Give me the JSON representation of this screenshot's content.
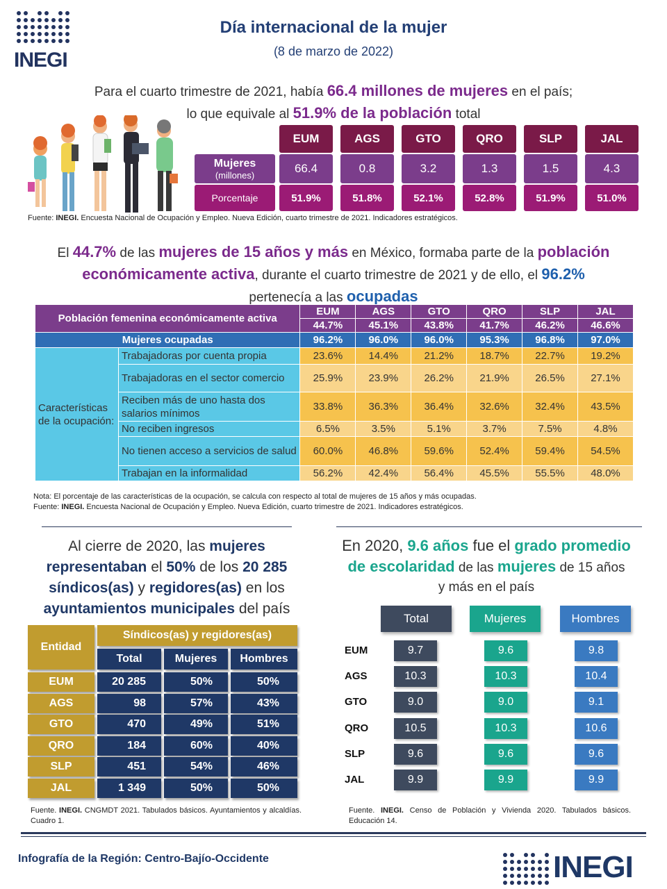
{
  "brand": {
    "name": "INEGI"
  },
  "header": {
    "title": "Día internacional de la mujer",
    "subtitle": "(8 de marzo de 2022)"
  },
  "intro": {
    "p1a": "Para el cuarto trimestre de 2021, había ",
    "p1b": "66.4 millones de mujeres",
    "p1c": " en el país;",
    "p2a": "lo que equivale al ",
    "p2b": "51.9% de la población",
    "p2c": " total"
  },
  "pop_table": {
    "entities": [
      "EUM",
      "AGS",
      "GTO",
      "QRO",
      "SLP",
      "JAL"
    ],
    "row1_label": "Mujeres",
    "row1_sub": "(millones)",
    "millions": [
      "66.4",
      "0.8",
      "3.2",
      "1.3",
      "1.5",
      "4.3"
    ],
    "row2_label": "Porcentaje",
    "percent": [
      "51.9%",
      "51.8%",
      "52.1%",
      "52.8%",
      "51.9%",
      "51.0%"
    ]
  },
  "source1": {
    "pre": "Fuente: ",
    "bold": "INEGI.",
    "rest": " Encuesta Nacional de Ocupación y Empleo. Nueva Edición, cuarto trimestre de 2021. Indicadores estratégicos."
  },
  "para2": {
    "a": "El ",
    "b": "44.7%",
    "c": " de las ",
    "d": "mujeres de 15 años y más",
    "e": " en México, formaba parte de la ",
    "f": "población",
    "g": "económicamente activa",
    "h": ", durante el cuarto trimestre de 2021 y de ello, el ",
    "i": "96.2%",
    "j": "pertenecía a las ",
    "k": "ocupadas"
  },
  "eap_table": {
    "title": "Población femenina económicamente activa",
    "entities": [
      "EUM",
      "AGS",
      "GTO",
      "QRO",
      "SLP",
      "JAL"
    ],
    "pea": [
      "44.7%",
      "45.1%",
      "43.8%",
      "41.7%",
      "46.2%",
      "46.6%"
    ],
    "ocup_label": "Mujeres ocupadas",
    "ocup": [
      "96.2%",
      "96.0%",
      "96.0%",
      "95.3%",
      "96.8%",
      "97.0%"
    ],
    "char_label": "Características de la ocupación:",
    "rows": [
      {
        "label": "Trabajadoras por cuenta propia",
        "v": [
          "23.6%",
          "14.4%",
          "21.2%",
          "18.7%",
          "22.7%",
          "19.2%"
        ]
      },
      {
        "label": "Trabajadoras en el sector comercio",
        "v": [
          "25.9%",
          "23.9%",
          "26.2%",
          "21.9%",
          "26.5%",
          "27.1%"
        ]
      },
      {
        "label": "Reciben más de uno hasta dos salarios mínimos",
        "v": [
          "33.8%",
          "36.3%",
          "36.4%",
          "32.6%",
          "32.4%",
          "43.5%"
        ]
      },
      {
        "label": "No reciben ingresos",
        "v": [
          "6.5%",
          "3.5%",
          "5.1%",
          "3.7%",
          "7.5%",
          "4.8%"
        ]
      },
      {
        "label": "No tienen acceso a servicios de salud",
        "v": [
          "60.0%",
          "46.8%",
          "59.6%",
          "52.4%",
          "59.4%",
          "54.5%"
        ]
      },
      {
        "label": "Trabajan en la informalidad",
        "v": [
          "56.2%",
          "42.4%",
          "56.4%",
          "45.5%",
          "55.5%",
          "48.0%"
        ]
      }
    ]
  },
  "nota": {
    "line1": "Nota: El porcentaje de las características de la ocupación, se calcula con respecto al total de mujeres de 15 años y más ocupadas.",
    "pre": "Fuente: ",
    "bold": "INEGI.",
    "rest": " Encuesta Nacional de Ocupación y Empleo. Nueva Edición, cuarto trimestre de 2021. Indicadores estratégicos."
  },
  "left_para": {
    "a": "Al cierre de 2020, las ",
    "b": "mujeres",
    "c": "representaban",
    "d": " el ",
    "e": "50%",
    "f": " de los ",
    "g": "20 285",
    "h": "síndicos(as)",
    "i": " y ",
    "j": "regidores(as)",
    "k": " en los",
    "l": "ayuntamientos municipales",
    "m": " del país"
  },
  "muni_table": {
    "entity_header": "Entidad",
    "group_header": "Síndicos(as) y regidores(as)",
    "cols": [
      "Total",
      "Mujeres",
      "Hombres"
    ],
    "rows": [
      {
        "e": "EUM",
        "t": "20 285",
        "m": "50%",
        "h": "50%"
      },
      {
        "e": "AGS",
        "t": "98",
        "m": "57%",
        "h": "43%"
      },
      {
        "e": "GTO",
        "t": "470",
        "m": "49%",
        "h": "51%"
      },
      {
        "e": "QRO",
        "t": "184",
        "m": "60%",
        "h": "40%"
      },
      {
        "e": "SLP",
        "t": "451",
        "m": "54%",
        "h": "46%"
      },
      {
        "e": "JAL",
        "t": "1 349",
        "m": "50%",
        "h": "50%"
      }
    ]
  },
  "source3": {
    "pre": "Fuente. ",
    "bold": "INEGI.",
    "rest": " CNGMDT 2021. Tabulados básicos. Ayuntamientos y alcaldías. Cuadro 1."
  },
  "right_para": {
    "a": "En 2020, ",
    "b": "9.6 años",
    "c": " fue el ",
    "d": "grado promedio",
    "e": "de escolaridad",
    "f": " de las ",
    "g": "mujeres",
    "h": " de 15 años",
    "i": "y más en el país"
  },
  "edu_table": {
    "cols": [
      "Total",
      "Mujeres",
      "Hombres"
    ],
    "colors": {
      "total": "#3e4a5e",
      "mujeres": "#1aa58d",
      "hombres": "#3a7ac1"
    },
    "rows": [
      {
        "e": "EUM",
        "t": "9.7",
        "m": "9.6",
        "h": "9.8"
      },
      {
        "e": "AGS",
        "t": "10.3",
        "m": "10.3",
        "h": "10.4"
      },
      {
        "e": "GTO",
        "t": "9.0",
        "m": "9.0",
        "h": "9.1"
      },
      {
        "e": "QRO",
        "t": "10.5",
        "m": "10.3",
        "h": "10.6"
      },
      {
        "e": "SLP",
        "t": "9.6",
        "m": "9.6",
        "h": "9.6"
      },
      {
        "e": "JAL",
        "t": "9.9",
        "m": "9.9",
        "h": "9.9"
      }
    ]
  },
  "source4": {
    "pre": "Fuente. ",
    "bold": "INEGI.",
    "rest": " Censo de Población y Vivienda 2020. Tabulados básicos. Educación 14."
  },
  "footer": {
    "title": "Infografía de la Región: Centro-Bajío-Occidente"
  }
}
